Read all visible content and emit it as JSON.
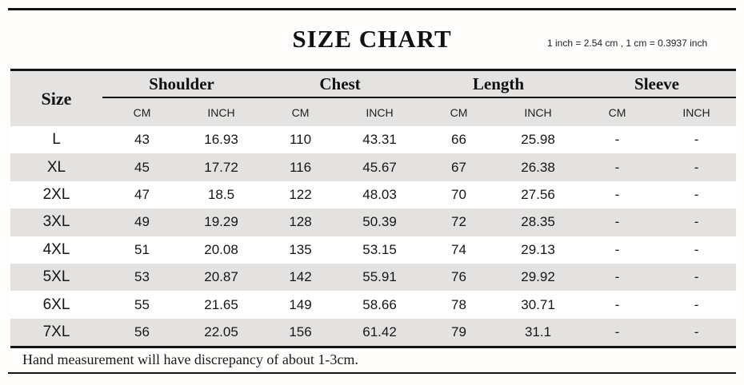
{
  "title": "SIZE CHART",
  "conversion_note": "1 inch = 2.54 cm , 1 cm = 0.3937 inch",
  "footer_note": "Hand measurement will have discrepancy of about 1-3cm.",
  "colors": {
    "stripe": "#e3e2e0",
    "header_bg": "#e4e3e1",
    "rule": "#141414"
  },
  "table": {
    "size_header": "Size",
    "groups": [
      {
        "label": "Shoulder",
        "units": [
          "CM",
          "INCH"
        ]
      },
      {
        "label": "Chest",
        "units": [
          "CM",
          "INCH"
        ]
      },
      {
        "label": "Length",
        "units": [
          "CM",
          "INCH"
        ]
      },
      {
        "label": "Sleeve",
        "units": [
          "CM",
          "INCH"
        ]
      }
    ],
    "rows": [
      {
        "size": "L",
        "values": [
          "43",
          "16.93",
          "110",
          "43.31",
          "66",
          "25.98",
          "-",
          "-"
        ]
      },
      {
        "size": "XL",
        "values": [
          "45",
          "17.72",
          "116",
          "45.67",
          "67",
          "26.38",
          "-",
          "-"
        ]
      },
      {
        "size": "2XL",
        "values": [
          "47",
          "18.5",
          "122",
          "48.03",
          "70",
          "27.56",
          "-",
          "-"
        ]
      },
      {
        "size": "3XL",
        "values": [
          "49",
          "19.29",
          "128",
          "50.39",
          "72",
          "28.35",
          "-",
          "-"
        ]
      },
      {
        "size": "4XL",
        "values": [
          "51",
          "20.08",
          "135",
          "53.15",
          "74",
          "29.13",
          "-",
          "-"
        ]
      },
      {
        "size": "5XL",
        "values": [
          "53",
          "20.87",
          "142",
          "55.91",
          "76",
          "29.92",
          "-",
          "-"
        ]
      },
      {
        "size": "6XL",
        "values": [
          "55",
          "21.65",
          "149",
          "58.66",
          "78",
          "30.71",
          "-",
          "-"
        ]
      },
      {
        "size": "7XL",
        "values": [
          "56",
          "22.05",
          "156",
          "61.42",
          "79",
          "31.1",
          "-",
          "-"
        ]
      }
    ]
  }
}
